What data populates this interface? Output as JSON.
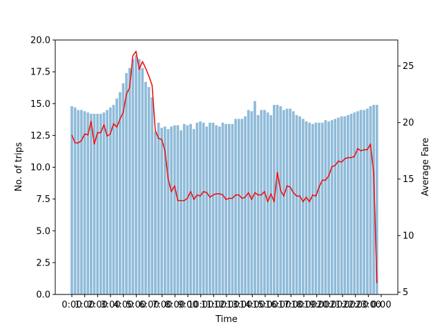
{
  "chart_data": {
    "type": "bar+line",
    "xlabel": "Time",
    "ylabel_left": "No. of trips",
    "ylabel_right": "Average Fare",
    "ylim_left": [
      0,
      20
    ],
    "ylim_right": [
      4.8,
      27.3
    ],
    "yticks_left": [
      "0.0",
      "2.5",
      "5.0",
      "7.5",
      "10.0",
      "12.5",
      "15.0",
      "17.5",
      "20.0"
    ],
    "yticks_right": [
      "5",
      "10",
      "15",
      "20",
      "25"
    ],
    "xticks": [
      "0:00",
      "1:00",
      "2:00",
      "3:00",
      "4:00",
      "5:00",
      "6:00",
      "7:00",
      "8:00",
      "9:00",
      "10:00",
      "11:00",
      "12:00",
      "13:00",
      "14:00",
      "15:00",
      "16:00",
      "17:00",
      "18:00",
      "19:00",
      "20:00",
      "21:00",
      "22:00",
      "23:00",
      "0:00"
    ],
    "grid": false,
    "colors": {
      "bars": "#8fbbd9",
      "line": "#ee1111"
    },
    "series": [
      {
        "type": "bar",
        "axis": "left",
        "values": [
          14.8,
          14.7,
          14.5,
          14.5,
          14.4,
          14.3,
          14.2,
          14.2,
          14.2,
          14.2,
          14.3,
          14.5,
          14.7,
          14.9,
          15.4,
          15.9,
          16.6,
          17.4,
          17.8,
          18.5,
          18.8,
          18.5,
          17.8,
          16.7,
          16.3,
          15.5,
          12.8,
          13.5,
          13.1,
          13.2,
          13.0,
          13.2,
          13.3,
          13.3,
          12.9,
          13.4,
          13.3,
          13.4,
          13.0,
          13.5,
          13.6,
          13.5,
          13.2,
          13.5,
          13.5,
          13.3,
          13.2,
          13.5,
          13.4,
          13.4,
          13.4,
          13.8,
          13.8,
          13.8,
          14.0,
          14.5,
          14.4,
          15.2,
          14.1,
          14.5,
          14.5,
          14.3,
          14.1,
          14.9,
          14.9,
          14.8,
          14.5,
          14.6,
          14.6,
          14.4,
          14.1,
          14.0,
          13.8,
          13.6,
          13.5,
          13.4,
          13.5,
          13.5,
          13.5,
          13.7,
          13.6,
          13.7,
          13.8,
          13.9,
          14.0,
          14.0,
          14.1,
          14.2,
          14.3,
          14.4,
          14.5,
          14.5,
          14.6,
          14.8,
          14.9,
          14.9
        ]
      },
      {
        "type": "line",
        "axis": "right",
        "values": [
          18.9,
          18.2,
          18.2,
          18.4,
          19.0,
          18.9,
          20.1,
          18.1,
          19.1,
          19.1,
          19.8,
          18.8,
          19.0,
          19.9,
          19.6,
          20.3,
          20.9,
          22.5,
          23.1,
          25.9,
          26.3,
          24.7,
          25.4,
          24.8,
          24.1,
          23.3,
          19.3,
          18.6,
          18.5,
          17.5,
          15.0,
          13.9,
          14.4,
          13.1,
          13.1,
          13.1,
          13.3,
          13.9,
          13.2,
          13.6,
          13.5,
          13.9,
          13.8,
          13.4,
          13.6,
          13.7,
          13.7,
          13.6,
          13.2,
          13.3,
          13.3,
          13.6,
          13.6,
          13.3,
          13.4,
          13.8,
          13.2,
          13.8,
          13.6,
          13.6,
          13.9,
          13.0,
          13.7,
          13.0,
          15.6,
          14.0,
          13.5,
          14.4,
          14.3,
          13.8,
          13.5,
          13.5,
          13.0,
          13.4,
          13.0,
          13.6,
          13.5,
          14.3,
          14.9,
          14.9,
          15.3,
          16.1,
          16.2,
          16.6,
          16.5,
          16.8,
          16.9,
          16.9,
          17.0,
          17.7,
          17.5,
          17.6,
          17.6,
          18.1,
          15.5,
          5.8
        ]
      }
    ]
  }
}
